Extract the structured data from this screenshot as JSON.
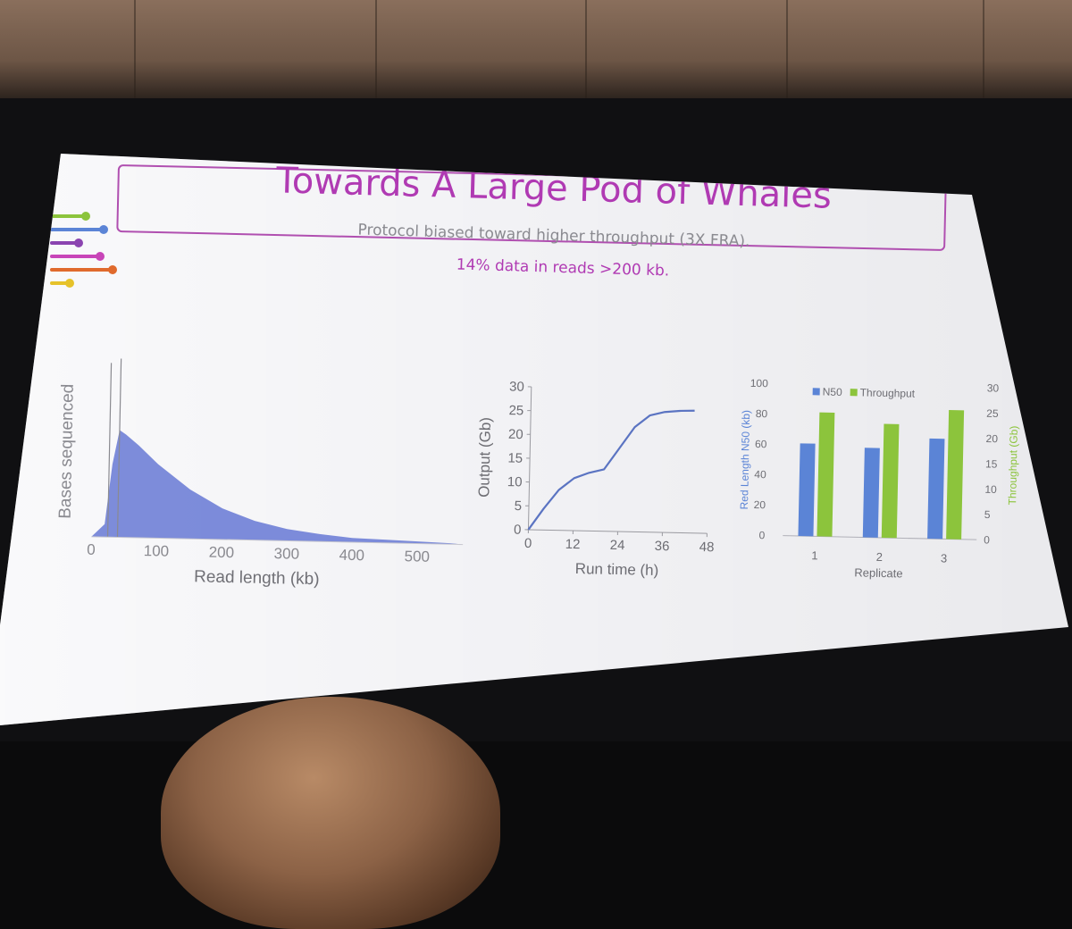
{
  "slide": {
    "title": "Towards A Large Pod of Whales",
    "subtitle": "Protocol biased toward higher throughput (3X FRA).",
    "highlight": "14% data in reads >200 kb."
  },
  "colors": {
    "slide_bg": "#f3f3f6",
    "accent_purple": "#b03ab3",
    "histogram_blue": "#6f7fd6",
    "line_blue": "#5b74c2",
    "bar_blue": "#5b84d6",
    "bar_green": "#8cc43c",
    "axis_gray": "#8a8a90"
  },
  "decor": {
    "left_accent_bar_colors": [
      "#8cc43c",
      "#5b84d6",
      "#8b44b0",
      "#c845b8",
      "#e06a2c",
      "#e6c22a"
    ],
    "bottom_right_icon_colors": [
      "#8cc43c",
      "#5b84d6",
      "#e6c22a",
      "#8b44b0",
      "#c845b8",
      "#e06a2c"
    ]
  },
  "chart_data": [
    {
      "type": "area",
      "xlabel": "Read length (kb)",
      "ylabel": "Bases sequenced",
      "xticks": [
        "0",
        "100",
        "200",
        "300",
        "400",
        "500"
      ],
      "xlim": [
        0,
        570
      ],
      "x": [
        0,
        20,
        30,
        40,
        50,
        70,
        100,
        150,
        200,
        250,
        300,
        350,
        400,
        450,
        500,
        550,
        570
      ],
      "values": [
        0,
        12,
        68,
        100,
        96,
        86,
        69,
        46,
        29,
        18,
        11,
        7,
        4,
        3,
        2,
        1,
        0
      ],
      "reference_lines_kb": [
        25,
        40
      ]
    },
    {
      "type": "line",
      "xlabel": "Run time (h)",
      "ylabel": "Output (Gb)",
      "xticks": [
        "0",
        "12",
        "24",
        "36",
        "48"
      ],
      "yticks": [
        "0",
        "5",
        "10",
        "15",
        "20",
        "25",
        "30"
      ],
      "xlim": [
        0,
        48
      ],
      "ylim": [
        0,
        30
      ],
      "x": [
        0,
        4,
        8,
        12,
        16,
        20,
        24,
        28,
        32,
        36,
        40,
        44
      ],
      "y": [
        0,
        4.5,
        8.5,
        11,
        12.2,
        13,
        17.5,
        22,
        24.5,
        25.3,
        25.6,
        25.7
      ]
    },
    {
      "type": "bar",
      "categories": [
        "1",
        "2",
        "3"
      ],
      "xlabel": "Replicate",
      "ylabel": "Red Length N50 (kb)",
      "ylabel_right": "Throughput (Gb)",
      "yticks": [
        "0",
        "20",
        "40",
        "60",
        "80",
        "100"
      ],
      "yticks_right": [
        "0",
        "5",
        "10",
        "15",
        "20",
        "25",
        "30"
      ],
      "ylim": [
        0,
        100
      ],
      "ylim_right": [
        0,
        30
      ],
      "legend": "top",
      "series": [
        {
          "name": "N50",
          "axis": "left",
          "values": [
            61,
            59,
            66
          ]
        },
        {
          "name": "Throughput",
          "axis": "right",
          "values": [
            24.5,
            22.5,
            25.5
          ]
        }
      ]
    }
  ]
}
